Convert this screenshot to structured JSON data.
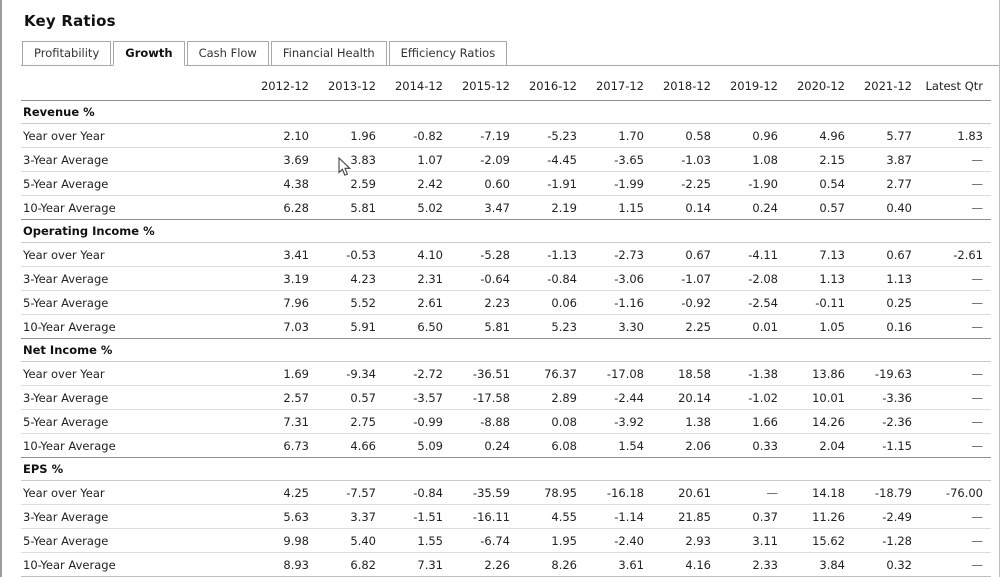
{
  "page": {
    "title": "Key Ratios"
  },
  "tabs": [
    {
      "label": "Profitability",
      "active": false
    },
    {
      "label": "Growth",
      "active": true
    },
    {
      "label": "Cash Flow",
      "active": false
    },
    {
      "label": "Financial Health",
      "active": false
    },
    {
      "label": "Efficiency Ratios",
      "active": false
    }
  ],
  "table": {
    "columns": [
      "2012-12",
      "2013-12",
      "2014-12",
      "2015-12",
      "2016-12",
      "2017-12",
      "2018-12",
      "2019-12",
      "2020-12",
      "2021-12",
      "Latest Qtr"
    ],
    "sections": [
      {
        "name": "Revenue %",
        "rows": [
          {
            "label": "Year over Year",
            "values": [
              "2.10",
              "1.96",
              "-0.82",
              "-7.19",
              "-5.23",
              "1.70",
              "0.58",
              "0.96",
              "4.96",
              "5.77",
              "1.83"
            ]
          },
          {
            "label": "3-Year Average",
            "values": [
              "3.69",
              "3.83",
              "1.07",
              "-2.09",
              "-4.45",
              "-3.65",
              "-1.03",
              "1.08",
              "2.15",
              "3.87",
              "—"
            ]
          },
          {
            "label": "5-Year Average",
            "values": [
              "4.38",
              "2.59",
              "2.42",
              "0.60",
              "-1.91",
              "-1.99",
              "-2.25",
              "-1.90",
              "0.54",
              "2.77",
              "—"
            ]
          },
          {
            "label": "10-Year Average",
            "values": [
              "6.28",
              "5.81",
              "5.02",
              "3.47",
              "2.19",
              "1.15",
              "0.14",
              "0.24",
              "0.57",
              "0.40",
              "—"
            ]
          }
        ]
      },
      {
        "name": "Operating Income %",
        "rows": [
          {
            "label": "Year over Year",
            "values": [
              "3.41",
              "-0.53",
              "4.10",
              "-5.28",
              "-1.13",
              "-2.73",
              "0.67",
              "-4.11",
              "7.13",
              "0.67",
              "-2.61"
            ]
          },
          {
            "label": "3-Year Average",
            "values": [
              "3.19",
              "4.23",
              "2.31",
              "-0.64",
              "-0.84",
              "-3.06",
              "-1.07",
              "-2.08",
              "1.13",
              "1.13",
              "—"
            ]
          },
          {
            "label": "5-Year Average",
            "values": [
              "7.96",
              "5.52",
              "2.61",
              "2.23",
              "0.06",
              "-1.16",
              "-0.92",
              "-2.54",
              "-0.11",
              "0.25",
              "—"
            ]
          },
          {
            "label": "10-Year Average",
            "values": [
              "7.03",
              "5.91",
              "6.50",
              "5.81",
              "5.23",
              "3.30",
              "2.25",
              "0.01",
              "1.05",
              "0.16",
              "—"
            ]
          }
        ]
      },
      {
        "name": "Net Income %",
        "rows": [
          {
            "label": "Year over Year",
            "values": [
              "1.69",
              "-9.34",
              "-2.72",
              "-36.51",
              "76.37",
              "-17.08",
              "18.58",
              "-1.38",
              "13.86",
              "-19.63",
              "—"
            ]
          },
          {
            "label": "3-Year Average",
            "values": [
              "2.57",
              "0.57",
              "-3.57",
              "-17.58",
              "2.89",
              "-2.44",
              "20.14",
              "-1.02",
              "10.01",
              "-3.36",
              "—"
            ]
          },
          {
            "label": "5-Year Average",
            "values": [
              "7.31",
              "2.75",
              "-0.99",
              "-8.88",
              "0.08",
              "-3.92",
              "1.38",
              "1.66",
              "14.26",
              "-2.36",
              "—"
            ]
          },
          {
            "label": "10-Year Average",
            "values": [
              "6.73",
              "4.66",
              "5.09",
              "0.24",
              "6.08",
              "1.54",
              "2.06",
              "0.33",
              "2.04",
              "-1.15",
              "—"
            ]
          }
        ]
      },
      {
        "name": "EPS %",
        "rows": [
          {
            "label": "Year over Year",
            "values": [
              "4.25",
              "-7.57",
              "-0.84",
              "-35.59",
              "78.95",
              "-16.18",
              "20.61",
              "—",
              "14.18",
              "-18.79",
              "-76.00"
            ]
          },
          {
            "label": "3-Year Average",
            "values": [
              "5.63",
              "3.37",
              "-1.51",
              "-16.11",
              "4.55",
              "-1.14",
              "21.85",
              "0.37",
              "11.26",
              "-2.49",
              "—"
            ]
          },
          {
            "label": "5-Year Average",
            "values": [
              "9.98",
              "5.40",
              "1.55",
              "-6.74",
              "1.95",
              "-2.40",
              "2.93",
              "3.11",
              "15.62",
              "-1.28",
              "—"
            ]
          },
          {
            "label": "10-Year Average",
            "values": [
              "8.93",
              "6.82",
              "7.31",
              "2.26",
              "8.26",
              "3.61",
              "4.16",
              "2.33",
              "3.84",
              "0.32",
              "—"
            ]
          }
        ]
      }
    ]
  }
}
